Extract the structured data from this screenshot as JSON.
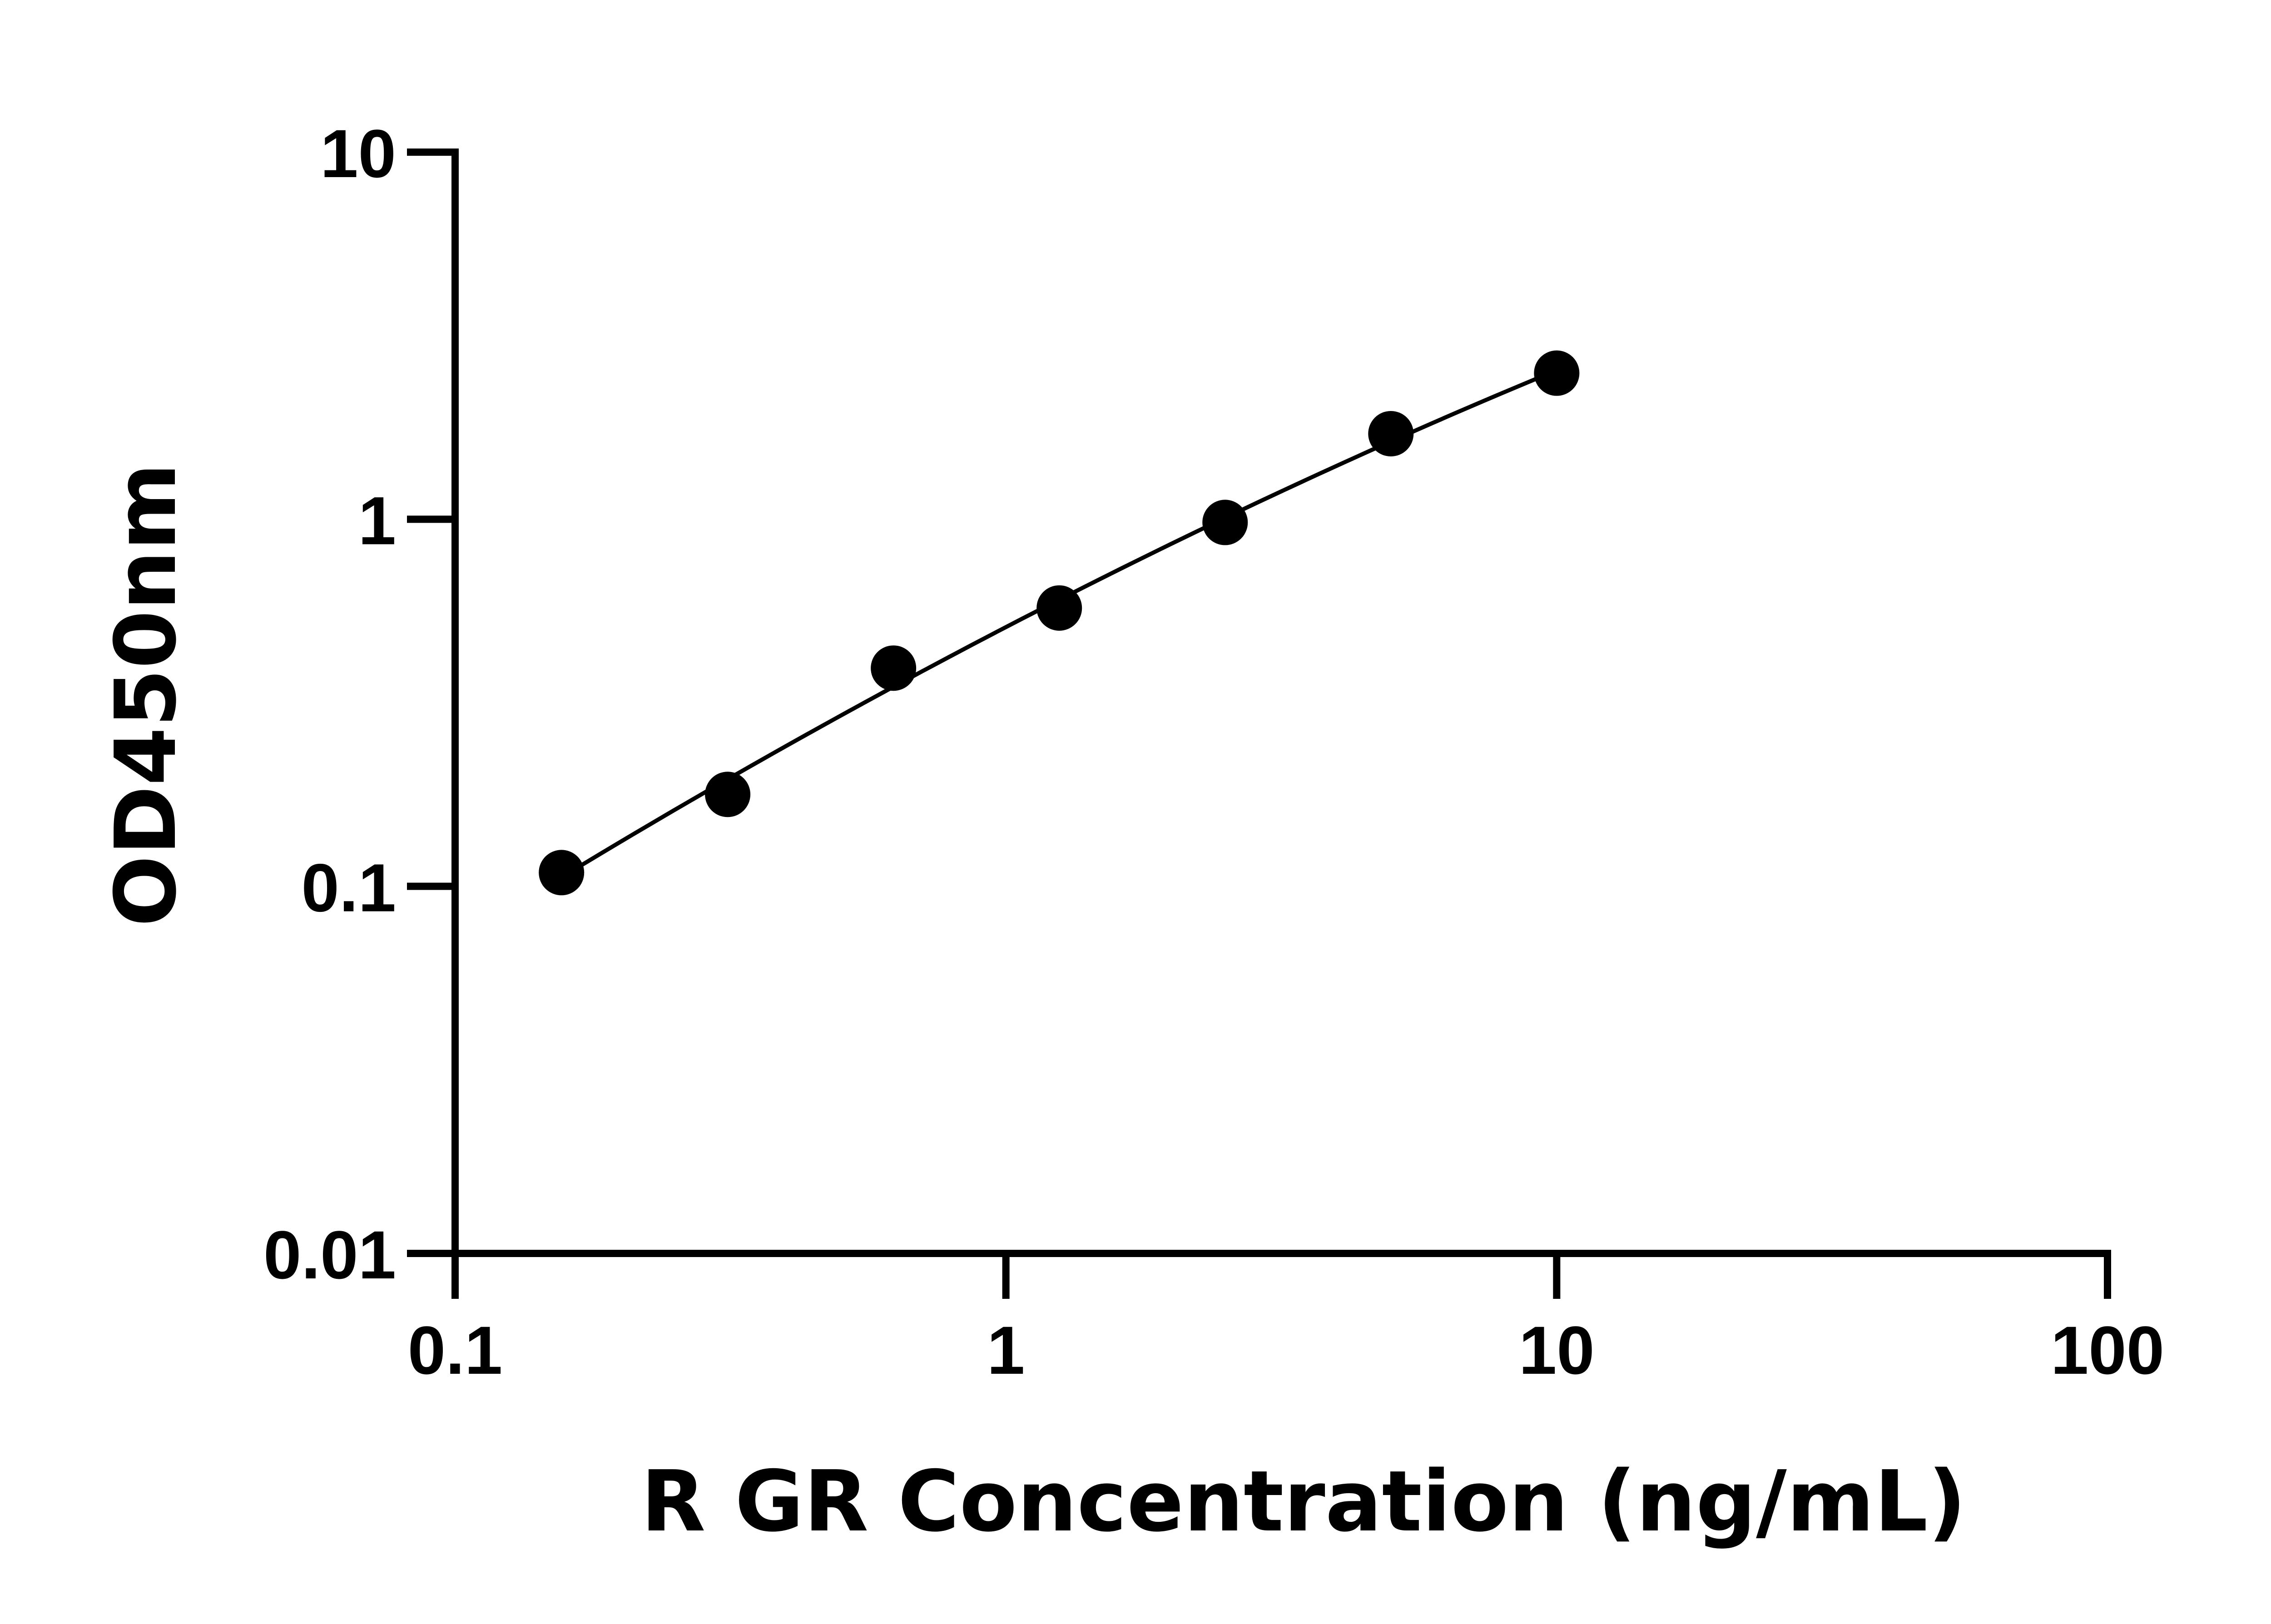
{
  "chart_data": {
    "type": "scatter",
    "title": "",
    "xlabel": "R GR Concentration (ng/mL)",
    "ylabel": "OD450nm",
    "x_scale": "log",
    "y_scale": "log",
    "xlim": [
      0.1,
      100
    ],
    "ylim": [
      0.01,
      10
    ],
    "x_ticks": [
      "0.1",
      "1",
      "10",
      "100"
    ],
    "y_ticks": [
      "0.01",
      "0.1",
      "1",
      "10"
    ],
    "grid": false,
    "fit_curve": true,
    "point_color": "#000000",
    "series": [
      {
        "x": [
          0.156,
          0.3125,
          0.625,
          1.25,
          2.5,
          5,
          10
        ],
        "y": [
          0.109,
          0.178,
          0.393,
          0.573,
          0.98,
          1.71,
          2.5
        ]
      }
    ]
  }
}
